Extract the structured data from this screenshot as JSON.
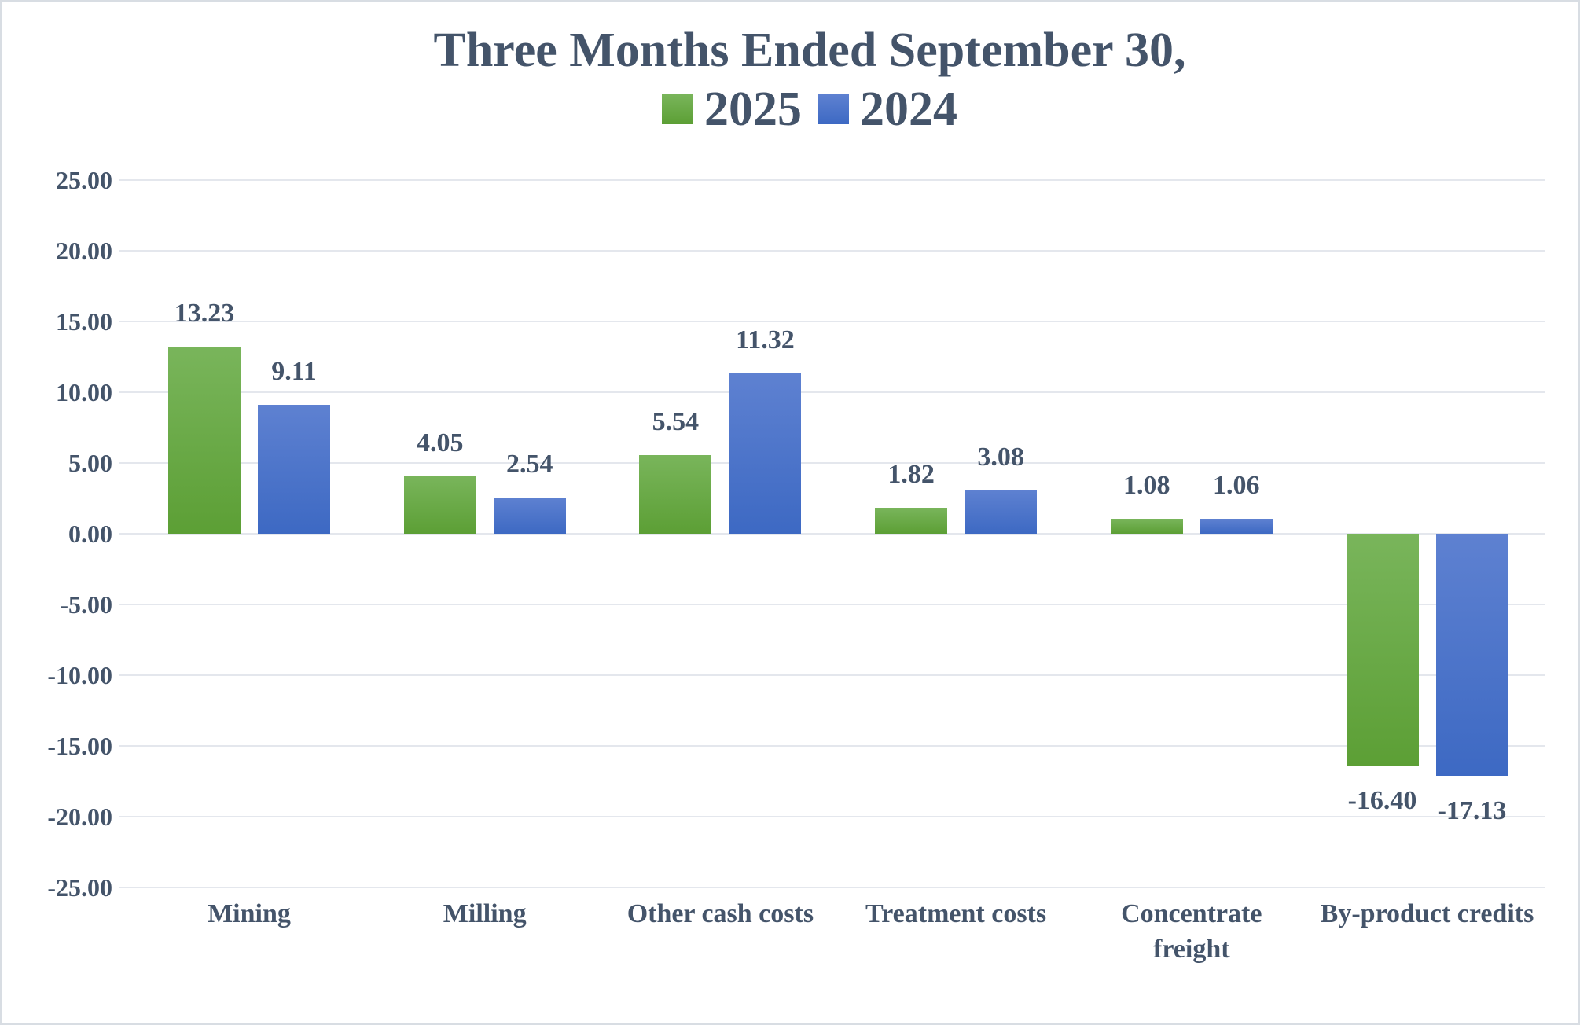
{
  "header": {
    "title": "Three Months Ended September 30,"
  },
  "chart_data": {
    "type": "bar",
    "title": "Three Months Ended September 30,",
    "categories": [
      "Mining",
      "Milling",
      "Other cash costs",
      "Treatment costs",
      "Concentrate\nfreight",
      "By-product credits"
    ],
    "series": [
      {
        "name": "2025",
        "color": "#70AD47",
        "gradient_top": "#79B55B",
        "gradient_bottom": "#5C9F35",
        "values": [
          13.23,
          4.05,
          5.54,
          1.82,
          1.08,
          -16.4
        ],
        "labels": [
          "13.23",
          "4.05",
          "5.54",
          "1.82",
          "1.08",
          "-16.40"
        ]
      },
      {
        "name": "2024",
        "color": "#4472C4",
        "gradient_top": "#5E81D1",
        "gradient_bottom": "#3D69C3",
        "values": [
          9.11,
          2.54,
          11.32,
          3.08,
          1.06,
          -17.13
        ],
        "labels": [
          "9.11",
          "2.54",
          "11.32",
          "3.08",
          "1.06",
          "-17.13"
        ]
      }
    ],
    "ylabel": "",
    "xlabel": "",
    "ylim": [
      -25,
      25
    ],
    "ytick_step": 5,
    "ytick_labels": [
      "25.00",
      "20.00",
      "15.00",
      "10.00",
      "5.00",
      "0.00",
      "-5.00",
      "-10.00",
      "-15.00",
      "-20.00",
      "-25.00"
    ],
    "grid": true,
    "legend_position": "top",
    "value_labels_shown": true,
    "text_color": "#44546A",
    "gridline_color": "#E4E7ED",
    "background_color": "#FFFFFF"
  }
}
